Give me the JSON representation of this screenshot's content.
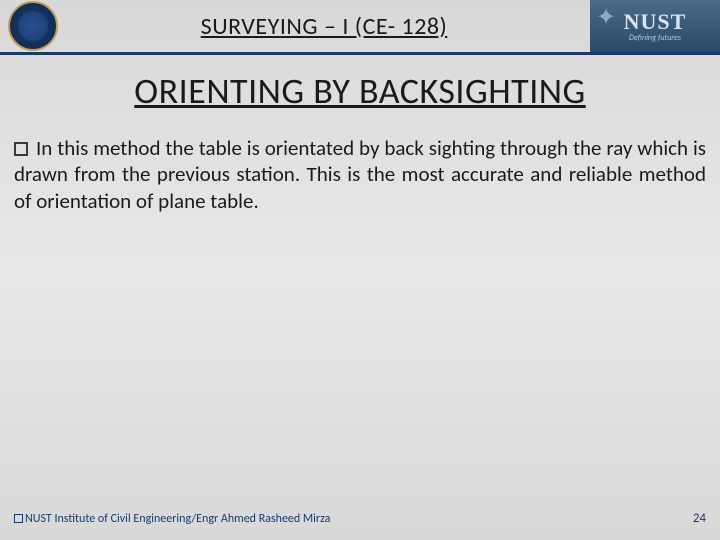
{
  "header": {
    "course_title": "SURVEYING – I (CE- 128)",
    "org_name": "NUST",
    "org_tagline": "Defining futures"
  },
  "content": {
    "title": "ORIENTING BY BACKSIGHTING",
    "paragraph": "In this method the table is orientated by back sighting through the ray which is drawn from the previous station. This is the most accurate and reliable method of orientation of plane table."
  },
  "footer": {
    "text": "NUST Institute of Civil Engineering/Engr Ahmed Rasheed Mirza",
    "page": "24"
  },
  "colors": {
    "rule": "#1a3a6e",
    "text": "#1a1a1a",
    "footer_text": "#1a3a6e"
  }
}
